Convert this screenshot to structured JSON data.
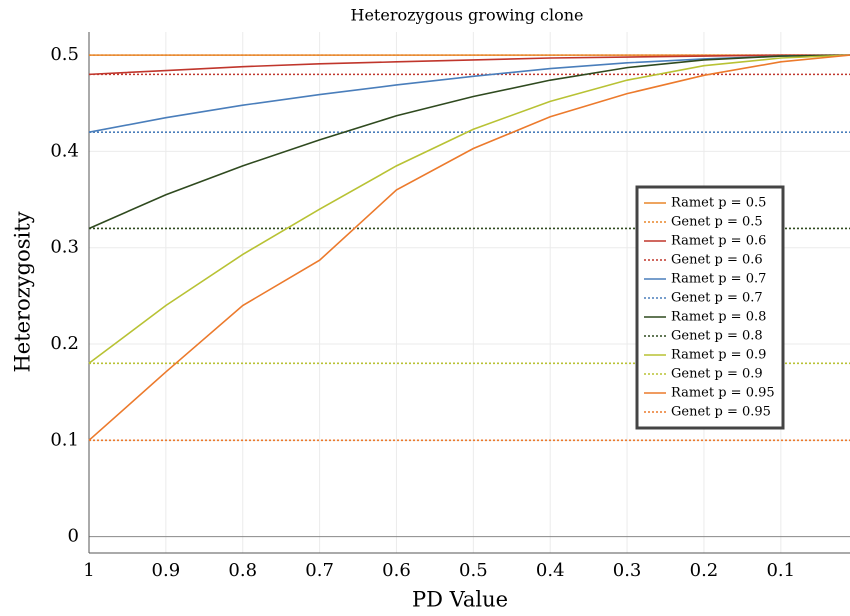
{
  "chart_data": {
    "type": "line",
    "title": "Heterozygous growing clone",
    "x_label": "PD Value",
    "y_label": "Heterozygosity",
    "x": [
      1,
      0.9,
      0.8,
      0.7,
      0.6,
      0.5,
      0.4,
      0.3,
      0.2,
      0.1,
      0.01
    ],
    "xlim": [
      1,
      0.01
    ],
    "ylim": [
      -0.017,
      0.524
    ],
    "xticks": [
      1,
      0.9,
      0.8,
      0.7,
      0.6,
      0.5,
      0.4,
      0.3,
      0.2,
      0.1
    ],
    "yticks": [
      0,
      0.1,
      0.2,
      0.3,
      0.4,
      0.5
    ],
    "grid": true,
    "legend": "right",
    "series": [
      {
        "name": "Ramet p = 0.5",
        "color": "#e8862a",
        "style": "solid",
        "values": [
          0.5,
          0.5,
          0.5,
          0.5,
          0.5,
          0.5,
          0.5,
          0.5,
          0.5,
          0.5,
          0.5
        ]
      },
      {
        "name": "Genet p = 0.5",
        "color": "#e8862a",
        "style": "dotted",
        "values": [
          0.5,
          0.5,
          0.5,
          0.5,
          0.5,
          0.5,
          0.5,
          0.5,
          0.5,
          0.5,
          0.5
        ]
      },
      {
        "name": "Ramet p = 0.6",
        "color": "#c0362c",
        "style": "solid",
        "values": [
          0.48,
          0.484,
          0.488,
          0.491,
          0.493,
          0.495,
          0.497,
          0.498,
          0.499,
          0.5,
          0.5
        ]
      },
      {
        "name": "Genet p = 0.6",
        "color": "#c0362c",
        "style": "dotted",
        "values": [
          0.48,
          0.48,
          0.48,
          0.48,
          0.48,
          0.48,
          0.48,
          0.48,
          0.48,
          0.48,
          0.48
        ]
      },
      {
        "name": "Ramet p = 0.7",
        "color": "#4a7ebb",
        "style": "solid",
        "values": [
          0.42,
          0.435,
          0.448,
          0.459,
          0.469,
          0.478,
          0.486,
          0.492,
          0.496,
          0.499,
          0.5
        ]
      },
      {
        "name": "Genet p = 0.7",
        "color": "#4a7ebb",
        "style": "dotted",
        "values": [
          0.42,
          0.42,
          0.42,
          0.42,
          0.42,
          0.42,
          0.42,
          0.42,
          0.42,
          0.42,
          0.42
        ]
      },
      {
        "name": "Ramet p = 0.8",
        "color": "#2f4a1f",
        "style": "solid",
        "values": [
          0.32,
          0.355,
          0.385,
          0.412,
          0.437,
          0.457,
          0.474,
          0.487,
          0.495,
          0.499,
          0.5
        ]
      },
      {
        "name": "Genet p = 0.8",
        "color": "#2f4a1f",
        "style": "dotted",
        "values": [
          0.32,
          0.32,
          0.32,
          0.32,
          0.32,
          0.32,
          0.32,
          0.32,
          0.32,
          0.32,
          0.32
        ]
      },
      {
        "name": "Ramet p = 0.9",
        "color": "#b8c234",
        "style": "solid",
        "values": [
          0.18,
          0.24,
          0.293,
          0.34,
          0.385,
          0.423,
          0.452,
          0.474,
          0.489,
          0.497,
          0.5
        ]
      },
      {
        "name": "Genet p = 0.9",
        "color": "#b8c234",
        "style": "dotted",
        "values": [
          0.18,
          0.18,
          0.18,
          0.18,
          0.18,
          0.18,
          0.18,
          0.18,
          0.18,
          0.18,
          0.18
        ]
      },
      {
        "name": "Ramet p = 0.95",
        "color": "#ec7a2c",
        "style": "solid",
        "values": [
          0.1,
          0.171,
          0.24,
          0.287,
          0.36,
          0.403,
          0.436,
          0.46,
          0.479,
          0.493,
          0.5
        ]
      },
      {
        "name": "Genet p = 0.95",
        "color": "#ec7a2c",
        "style": "dotted",
        "values": [
          0.1,
          0.1,
          0.1,
          0.1,
          0.1,
          0.1,
          0.1,
          0.1,
          0.1,
          0.1,
          0.1
        ]
      }
    ]
  }
}
